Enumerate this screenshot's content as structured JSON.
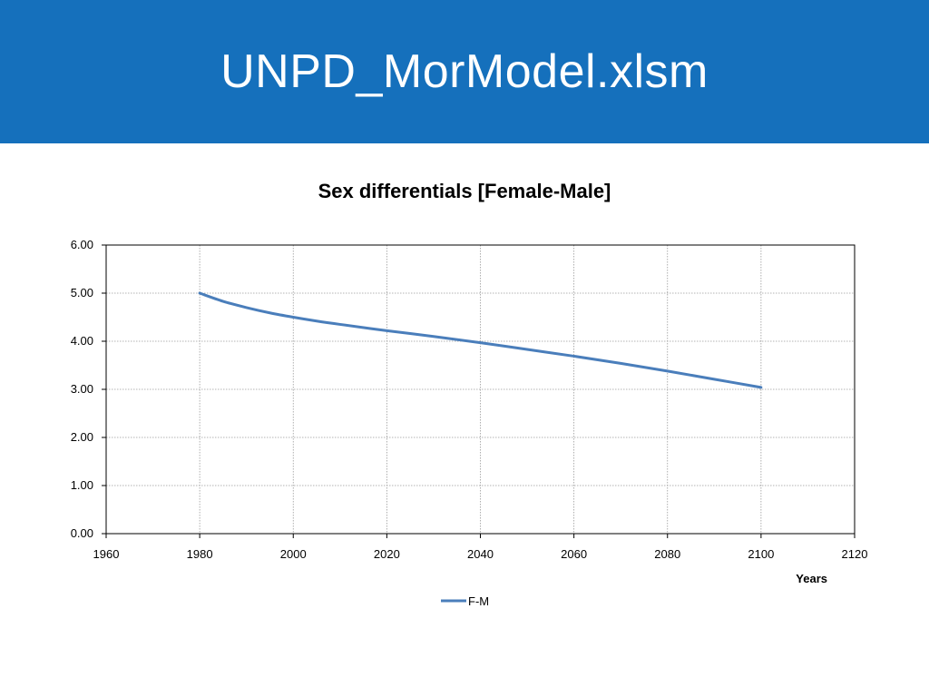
{
  "slide": {
    "title": "UNPD_MorModel.xlsm",
    "header_color": "#1570bc"
  },
  "chart_data": {
    "type": "line",
    "title": "Sex differentials [Female-Male]",
    "xlabel": "Years",
    "ylabel": "",
    "xlim": [
      1960,
      2120
    ],
    "ylim": [
      0,
      6
    ],
    "x_ticks": [
      "1960",
      "1980",
      "2000",
      "2020",
      "2040",
      "2060",
      "2080",
      "2100",
      "2120"
    ],
    "y_ticks": [
      "0.00",
      "1.00",
      "2.00",
      "3.00",
      "4.00",
      "5.00",
      "6.00"
    ],
    "grid": true,
    "legend_position": "bottom",
    "series": [
      {
        "name": "F-M",
        "color": "#4a7ebb",
        "x": [
          1980,
          1985,
          1990,
          1995,
          2000,
          2005,
          2010,
          2020,
          2030,
          2040,
          2050,
          2060,
          2070,
          2080,
          2090,
          2100
        ],
        "y": [
          5.0,
          4.83,
          4.7,
          4.59,
          4.5,
          4.42,
          4.35,
          4.22,
          4.1,
          3.97,
          3.83,
          3.69,
          3.54,
          3.38,
          3.21,
          3.04
        ]
      }
    ]
  }
}
